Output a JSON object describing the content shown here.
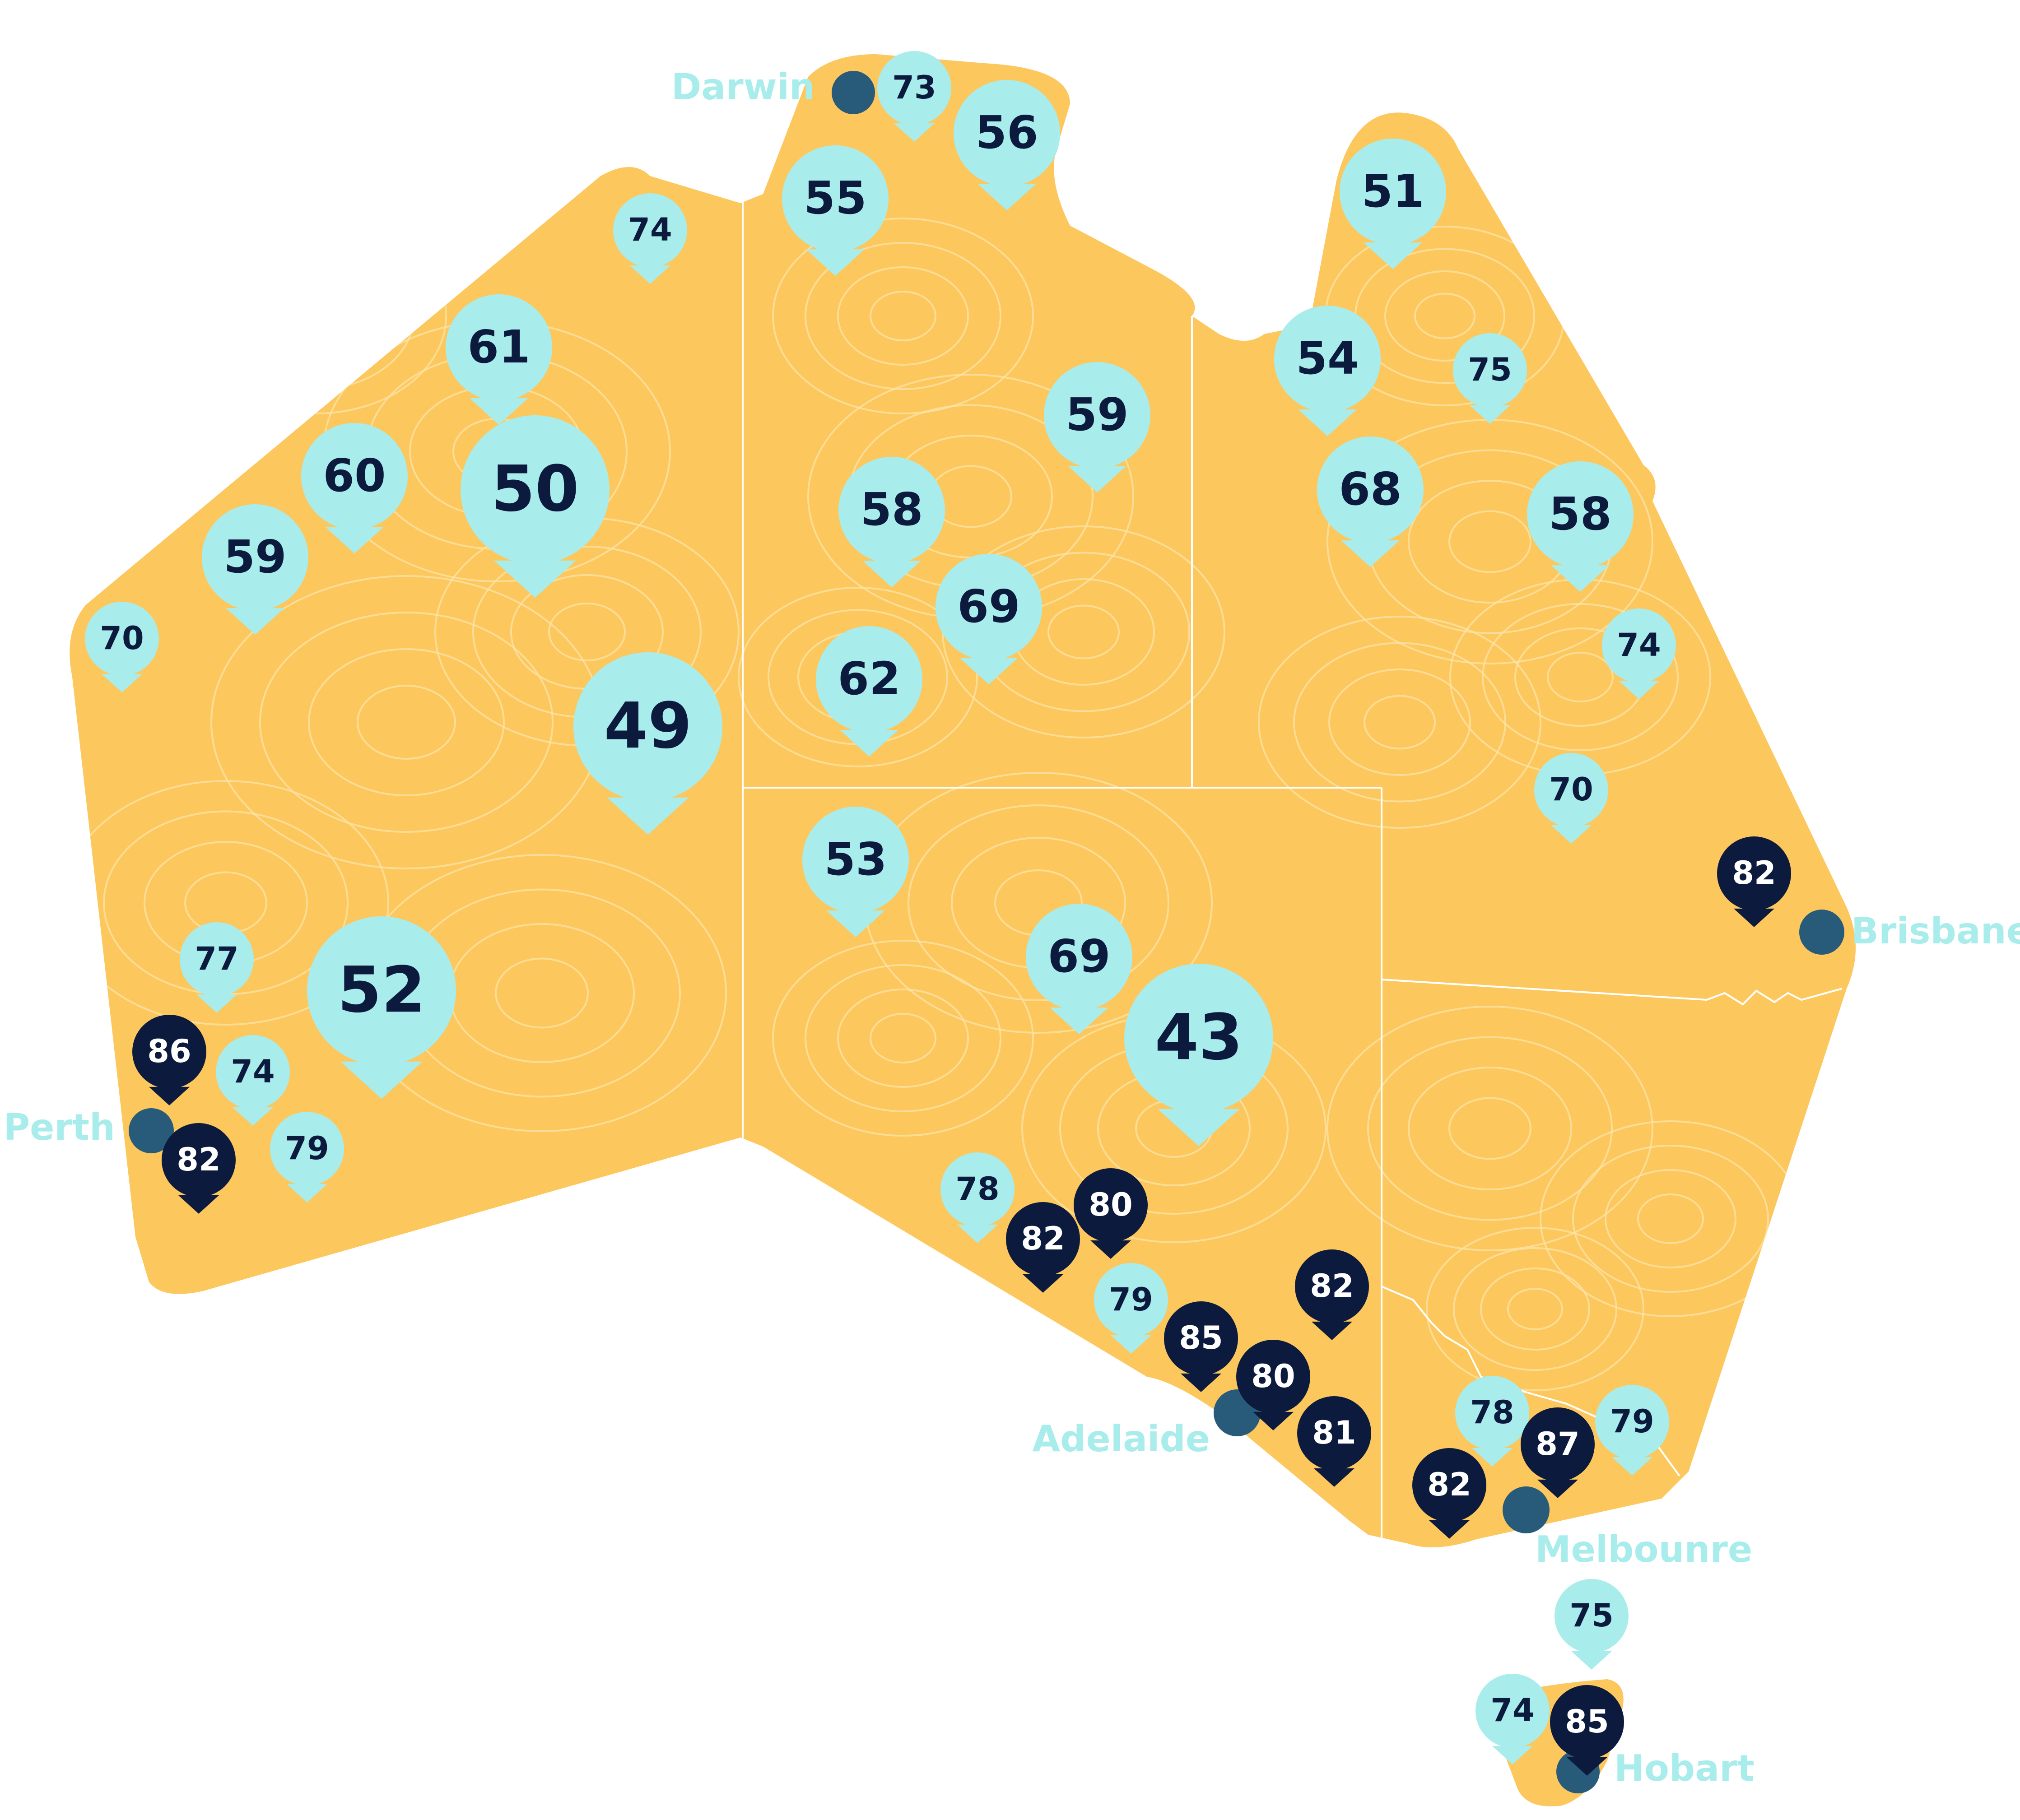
{
  "colors": {
    "land": "#fcc75c",
    "land_texture": "#fde6ae",
    "border": "#ffffff",
    "marker_light": "#a9ecec",
    "marker_dark": "#0c1a3e",
    "marker_text_dark": "#0c1a3e",
    "marker_text_light": "#ffffff",
    "city_dot": "#285a7a",
    "city_label": "#a9ecec",
    "background": "#ffffff"
  },
  "cities": [
    {
      "name": "Darwin"
    },
    {
      "name": "Brisbane"
    },
    {
      "name": "Perth"
    },
    {
      "name": "Adelaide"
    },
    {
      "name": "Melbounre"
    },
    {
      "name": "Hobart"
    }
  ],
  "markers": [
    {
      "value": "73",
      "tone": "light",
      "size": "small"
    },
    {
      "value": "56",
      "tone": "light",
      "size": "medium"
    },
    {
      "value": "55",
      "tone": "light",
      "size": "medium"
    },
    {
      "value": "74",
      "tone": "light",
      "size": "small"
    },
    {
      "value": "61",
      "tone": "light",
      "size": "medium"
    },
    {
      "value": "60",
      "tone": "light",
      "size": "medium"
    },
    {
      "value": "50",
      "tone": "light",
      "size": "large"
    },
    {
      "value": "59",
      "tone": "light",
      "size": "medium"
    },
    {
      "value": "70",
      "tone": "light",
      "size": "small"
    },
    {
      "value": "49",
      "tone": "light",
      "size": "large"
    },
    {
      "value": "58",
      "tone": "light",
      "size": "medium"
    },
    {
      "value": "69",
      "tone": "light",
      "size": "medium"
    },
    {
      "value": "62",
      "tone": "light",
      "size": "medium"
    },
    {
      "value": "59",
      "tone": "light",
      "size": "medium"
    },
    {
      "value": "51",
      "tone": "light",
      "size": "medium"
    },
    {
      "value": "54",
      "tone": "light",
      "size": "medium"
    },
    {
      "value": "75",
      "tone": "light",
      "size": "small"
    },
    {
      "value": "68",
      "tone": "light",
      "size": "medium"
    },
    {
      "value": "58",
      "tone": "light",
      "size": "medium"
    },
    {
      "value": "74",
      "tone": "light",
      "size": "small"
    },
    {
      "value": "70",
      "tone": "light",
      "size": "small"
    },
    {
      "value": "82",
      "tone": "dark",
      "size": "small"
    },
    {
      "value": "53",
      "tone": "light",
      "size": "medium"
    },
    {
      "value": "69",
      "tone": "light",
      "size": "medium"
    },
    {
      "value": "43",
      "tone": "light",
      "size": "large"
    },
    {
      "value": "52",
      "tone": "light",
      "size": "large"
    },
    {
      "value": "77",
      "tone": "light",
      "size": "small"
    },
    {
      "value": "86",
      "tone": "dark",
      "size": "small"
    },
    {
      "value": "74",
      "tone": "light",
      "size": "small"
    },
    {
      "value": "82",
      "tone": "dark",
      "size": "small"
    },
    {
      "value": "79",
      "tone": "light",
      "size": "small"
    },
    {
      "value": "78",
      "tone": "light",
      "size": "small"
    },
    {
      "value": "80",
      "tone": "dark",
      "size": "small"
    },
    {
      "value": "82",
      "tone": "dark",
      "size": "small"
    },
    {
      "value": "79",
      "tone": "light",
      "size": "small"
    },
    {
      "value": "82",
      "tone": "dark",
      "size": "small"
    },
    {
      "value": "85",
      "tone": "dark",
      "size": "small"
    },
    {
      "value": "80",
      "tone": "dark",
      "size": "small"
    },
    {
      "value": "81",
      "tone": "dark",
      "size": "small"
    },
    {
      "value": "78",
      "tone": "light",
      "size": "small"
    },
    {
      "value": "87",
      "tone": "dark",
      "size": "small"
    },
    {
      "value": "79",
      "tone": "light",
      "size": "small"
    },
    {
      "value": "82",
      "tone": "dark",
      "size": "small"
    },
    {
      "value": "75",
      "tone": "light",
      "size": "small"
    },
    {
      "value": "74",
      "tone": "light",
      "size": "small"
    },
    {
      "value": "85",
      "tone": "dark",
      "size": "small"
    }
  ]
}
